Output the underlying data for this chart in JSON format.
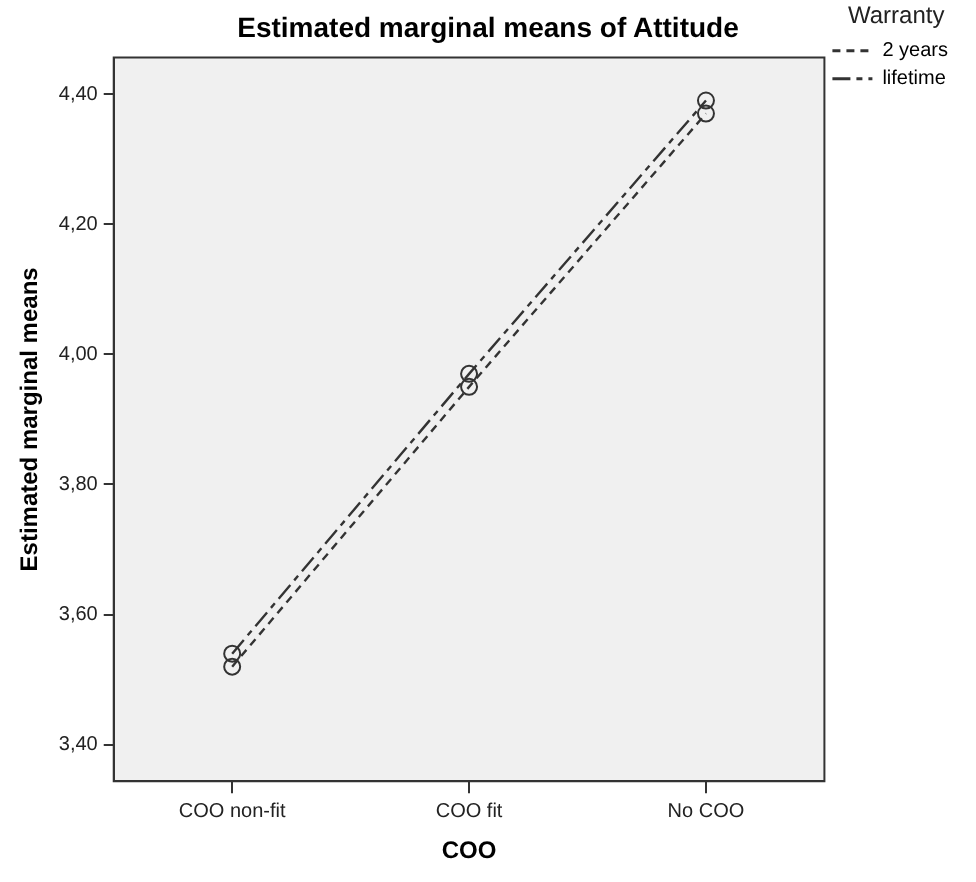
{
  "chart_data": {
    "type": "line",
    "title": "Estimated marginal means of Attitude",
    "xlabel": "COO",
    "ylabel": "Estimated marginal means",
    "legend_title": "Warranty",
    "categories": [
      "COO non-fit",
      "COO fit",
      "No COO"
    ],
    "series": [
      {
        "name": "2 years",
        "color": "#333333",
        "values": [
          3.52,
          3.95,
          4.37
        ],
        "line_style": "dashed"
      },
      {
        "name": "lifetime",
        "color": "#333333",
        "values": [
          3.54,
          3.97,
          4.39
        ],
        "line_style": "dashed"
      }
    ],
    "ylim": [
      3.344,
      4.456
    ],
    "yticks": [
      {
        "value": 3.4,
        "label": "3,40"
      },
      {
        "value": 3.6,
        "label": "3,60"
      },
      {
        "value": 3.8,
        "label": "3,80"
      },
      {
        "value": 4.0,
        "label": "4,00"
      },
      {
        "value": 4.2,
        "label": "4,20"
      },
      {
        "value": 4.4,
        "label": "4,40"
      }
    ],
    "grid": false,
    "legend": "top right",
    "marker": "circle"
  }
}
